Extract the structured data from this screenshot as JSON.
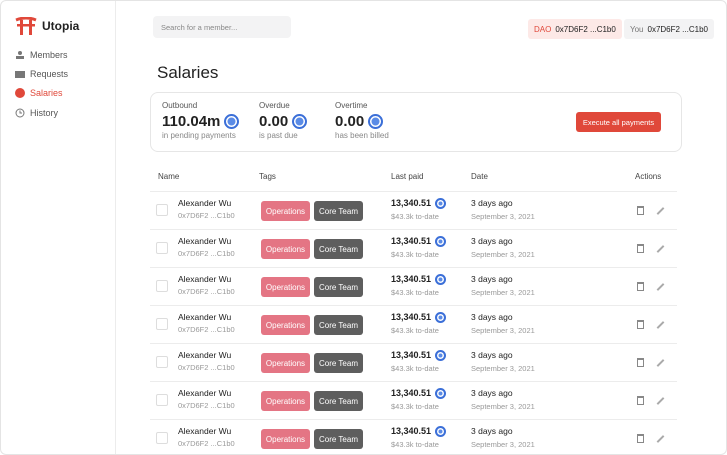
{
  "sidebar": {
    "brand": "Utopia",
    "nav": [
      "Members",
      "Requests",
      "Salaries",
      "History"
    ]
  },
  "search": {
    "placeholder": "Search for a member..."
  },
  "header": {
    "dao": {
      "label": "DAO",
      "address": "0x7D6F2 ...C1b0"
    },
    "you": {
      "label": "You",
      "address": "0x7D6F2 ...C1b0"
    }
  },
  "title": "Salaries",
  "stats": [
    {
      "label": "Outbound",
      "value": "110.04m",
      "note": "in pending payments"
    },
    {
      "label": "Overdue",
      "value": "0.00",
      "note": "is past due"
    },
    {
      "label": "Overtime",
      "value": "0.00",
      "note": "has been billed"
    }
  ],
  "button": "Execute all payments",
  "table": {
    "columns": [
      "Name",
      "Tags",
      "Last paid",
      "Date",
      "Actions"
    ],
    "rows": [
      {
        "name": "Alexander Wu",
        "address": "0x7D6F2 ...C1b0",
        "tags": [
          "Operations",
          "Core Team"
        ],
        "amount": "13,340.51",
        "to_date": "$43.3k to-date",
        "date": "3 days ago",
        "date_full": "September 3, 2021"
      },
      {
        "name": "Alexander Wu",
        "address": "0x7D6F2 ...C1b0",
        "tags": [
          "Operations",
          "Core Team"
        ],
        "amount": "13,340.51",
        "to_date": "$43.3k to-date",
        "date": "3 days ago",
        "date_full": "September 3, 2021"
      },
      {
        "name": "Alexander Wu",
        "address": "0x7D6F2 ...C1b0",
        "tags": [
          "Operations",
          "Core Team"
        ],
        "amount": "13,340.51",
        "to_date": "$43.3k to-date",
        "date": "3 days ago",
        "date_full": "September 3, 2021"
      },
      {
        "name": "Alexander Wu",
        "address": "0x7D6F2 ...C1b0",
        "tags": [
          "Operations",
          "Core Team"
        ],
        "amount": "13,340.51",
        "to_date": "$43.3k to-date",
        "date": "3 days ago",
        "date_full": "September 3, 2021"
      },
      {
        "name": "Alexander Wu",
        "address": "0x7D6F2 ...C1b0",
        "tags": [
          "Operations",
          "Core Team"
        ],
        "amount": "13,340.51",
        "to_date": "$43.3k to-date",
        "date": "3 days ago",
        "date_full": "September 3, 2021"
      },
      {
        "name": "Alexander Wu",
        "address": "0x7D6F2 ...C1b0",
        "tags": [
          "Operations",
          "Core Team"
        ],
        "amount": "13,340.51",
        "to_date": "$43.3k to-date",
        "date": "3 days ago",
        "date_full": "September 3, 2021"
      },
      {
        "name": "Alexander Wu",
        "address": "0x7D6F2 ...C1b0",
        "tags": [
          "Operations",
          "Core Team"
        ],
        "amount": "13,340.51",
        "to_date": "$43.3k to-date",
        "date": "3 days ago",
        "date_full": "September 3, 2021"
      }
    ]
  }
}
